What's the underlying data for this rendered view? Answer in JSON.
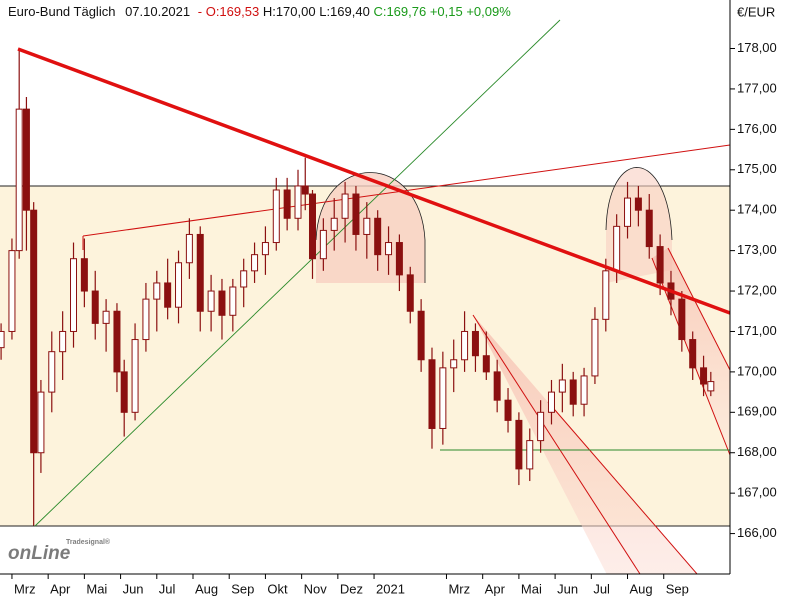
{
  "chart_data": {
    "type": "candlestick",
    "title": "Euro-Bund Täglich",
    "date": "07.10.2021",
    "open_label": "- O:169,53",
    "high_label": "H:170,00",
    "low_label": "L:169,40",
    "close_label": "C:169,76 +0,15 +0,09%",
    "y_label": "€/EUR",
    "watermark": [
      "Tradesignal®",
      "onLine"
    ],
    "color": "#8b1010",
    "xlim": [
      -0.33,
      19.83
    ],
    "xticks": [
      {
        "value": 0,
        "label": "Mrz"
      },
      {
        "value": 1,
        "label": "Apr"
      },
      {
        "value": 2,
        "label": "Mai"
      },
      {
        "value": 3,
        "label": "Jun"
      },
      {
        "value": 4,
        "label": "Jul"
      },
      {
        "value": 5,
        "label": "Aug"
      },
      {
        "value": 6,
        "label": "Sep"
      },
      {
        "value": 7,
        "label": "Okt"
      },
      {
        "value": 8,
        "label": "Nov"
      },
      {
        "value": 9,
        "label": "Dez"
      },
      {
        "value": 10,
        "label": "2021"
      },
      {
        "value": 12,
        "label": "Mrz"
      },
      {
        "value": 13,
        "label": "Apr"
      },
      {
        "value": 14,
        "label": "Mai"
      },
      {
        "value": 15,
        "label": "Jun"
      },
      {
        "value": 16,
        "label": "Jul"
      },
      {
        "value": 17,
        "label": "Aug"
      },
      {
        "value": 18,
        "label": "Sep"
      }
    ],
    "ylim": [
      165.0,
      179.2
    ],
    "yticks": [
      {
        "value": 166,
        "label": "166,00"
      },
      {
        "value": 167,
        "label": "167,00"
      },
      {
        "value": 168,
        "label": "168,00"
      },
      {
        "value": 169,
        "label": "169,00"
      },
      {
        "value": 170,
        "label": "170,00"
      },
      {
        "value": 171,
        "label": "171,00"
      },
      {
        "value": 172,
        "label": "172,00"
      },
      {
        "value": 173,
        "label": "173,00"
      },
      {
        "value": 174,
        "label": "174,00"
      },
      {
        "value": 175,
        "label": "175,00"
      },
      {
        "value": 176,
        "label": "176,00"
      },
      {
        "value": 177,
        "label": "177,00"
      },
      {
        "value": 178,
        "label": "178,00"
      }
    ],
    "x": [
      -0.3,
      0.0,
      0.2,
      0.4,
      0.6,
      0.8,
      1.1,
      1.4,
      1.7,
      2.0,
      2.3,
      2.6,
      2.9,
      3.1,
      3.4,
      3.7,
      4.0,
      4.3,
      4.6,
      4.9,
      5.2,
      5.5,
      5.8,
      6.1,
      6.4,
      6.7,
      7.0,
      7.3,
      7.6,
      7.9,
      8.1,
      8.3,
      8.6,
      8.9,
      9.2,
      9.5,
      9.8,
      10.1,
      10.4,
      10.7,
      11.0,
      11.3,
      11.6,
      11.9,
      12.2,
      12.5,
      12.8,
      13.1,
      13.4,
      13.7,
      14.0,
      14.3,
      14.6,
      14.9,
      15.2,
      15.5,
      15.8,
      16.1,
      16.4,
      16.7,
      17.0,
      17.3,
      17.6,
      17.9,
      18.2,
      18.5,
      18.8,
      19.1,
      19.3
    ],
    "open": [
      170.6,
      171.0,
      173.0,
      176.5,
      174.0,
      168.0,
      169.5,
      170.5,
      171.0,
      172.8,
      172.0,
      171.2,
      171.5,
      170.0,
      169.0,
      170.8,
      171.8,
      172.2,
      171.6,
      172.7,
      173.4,
      171.5,
      172.0,
      171.4,
      172.1,
      172.5,
      172.9,
      173.2,
      174.5,
      173.8,
      174.6,
      174.4,
      172.8,
      173.5,
      173.8,
      174.4,
      173.4,
      173.8,
      172.9,
      173.2,
      172.4,
      171.5,
      170.3,
      168.6,
      170.1,
      170.3,
      171.0,
      170.4,
      170.0,
      169.3,
      168.8,
      167.6,
      168.3,
      169.0,
      169.5,
      169.8,
      169.2,
      169.9,
      171.3,
      172.5,
      173.6,
      174.3,
      174.0,
      173.1,
      172.2,
      171.8,
      170.8,
      170.1,
      169.53
    ],
    "high": [
      171.2,
      173.3,
      178.0,
      176.8,
      174.2,
      169.8,
      171.0,
      171.5,
      173.2,
      173.3,
      172.5,
      171.8,
      171.7,
      170.3,
      171.2,
      172.2,
      172.5,
      172.8,
      173.0,
      173.8,
      173.6,
      172.4,
      172.3,
      172.3,
      172.8,
      173.2,
      173.6,
      174.8,
      174.8,
      175.0,
      175.3,
      174.5,
      173.8,
      174.3,
      174.7,
      174.6,
      174.2,
      174.0,
      173.6,
      173.4,
      172.6,
      171.8,
      170.6,
      170.5,
      170.8,
      171.5,
      171.2,
      171.0,
      170.3,
      169.6,
      169.0,
      168.6,
      169.3,
      169.8,
      170.2,
      170.0,
      170.1,
      171.6,
      172.8,
      173.9,
      174.7,
      174.6,
      174.4,
      173.4,
      172.5,
      172.0,
      171.0,
      170.4,
      170.0
    ],
    "low": [
      170.3,
      170.8,
      172.8,
      173.0,
      166.2,
      167.5,
      169.0,
      169.8,
      170.6,
      171.6,
      170.8,
      170.5,
      169.5,
      168.4,
      168.8,
      170.5,
      171.0,
      171.3,
      171.2,
      172.3,
      171.0,
      171.0,
      170.8,
      171.0,
      171.6,
      172.2,
      172.4,
      173.0,
      173.5,
      173.5,
      174.0,
      172.3,
      172.5,
      173.0,
      173.2,
      173.0,
      172.8,
      172.5,
      172.4,
      172.0,
      171.2,
      170.0,
      168.1,
      168.2,
      169.5,
      170.0,
      170.0,
      169.8,
      169.0,
      168.5,
      167.2,
      167.3,
      168.0,
      168.7,
      169.0,
      168.9,
      168.9,
      169.7,
      171.0,
      172.2,
      173.3,
      173.6,
      172.8,
      171.9,
      171.4,
      170.5,
      169.8,
      169.4,
      169.4
    ],
    "close": [
      171.0,
      173.0,
      176.5,
      174.0,
      168.0,
      169.5,
      170.5,
      171.0,
      172.8,
      172.0,
      171.2,
      171.5,
      170.0,
      169.0,
      170.8,
      171.8,
      172.2,
      171.6,
      172.7,
      173.4,
      171.5,
      172.0,
      171.4,
      172.1,
      172.5,
      172.9,
      173.2,
      174.5,
      173.8,
      174.6,
      174.4,
      172.8,
      173.5,
      173.8,
      174.4,
      173.4,
      173.8,
      172.9,
      173.2,
      172.4,
      171.5,
      170.3,
      168.6,
      170.1,
      170.3,
      171.0,
      170.4,
      170.0,
      169.3,
      168.8,
      167.6,
      168.3,
      169.0,
      169.5,
      169.8,
      169.2,
      169.9,
      171.3,
      172.5,
      173.6,
      174.3,
      174.0,
      173.1,
      172.2,
      171.8,
      170.8,
      170.1,
      169.7,
      169.76
    ]
  }
}
